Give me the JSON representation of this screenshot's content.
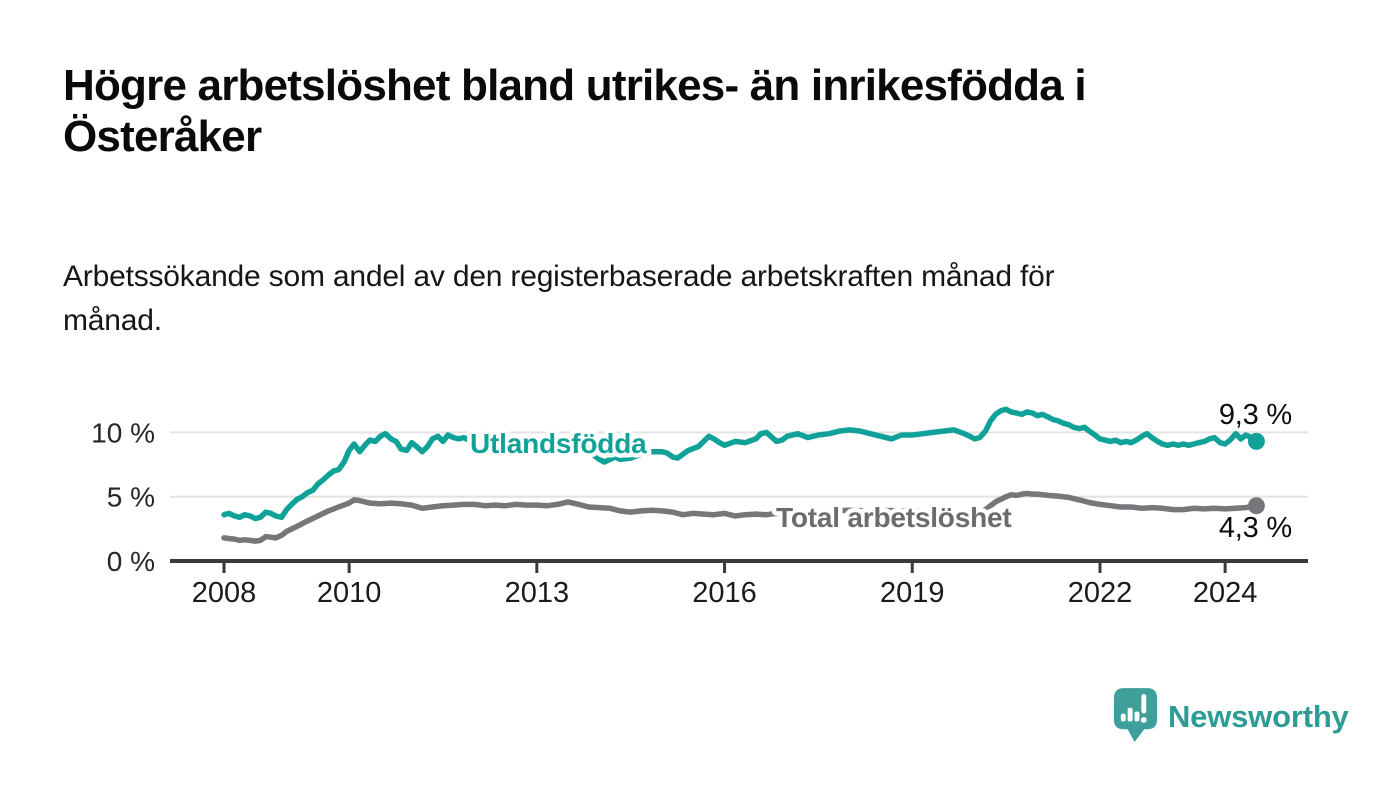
{
  "title": {
    "line1": "Högre arbetslöshet bland utrikes- än inrikesfödda i",
    "line2": "Österåker"
  },
  "subtitle": {
    "line1": "Arbetssökande som andel av den registerbaserade arbetskraften månad för",
    "line2": "månad."
  },
  "branding": {
    "name": "Newsworthy",
    "icon": "speech-bubble-bar-chart-icon",
    "text_color": "#2d9c95",
    "icon_color": "#3f9f9a"
  },
  "chart_data": {
    "type": "line",
    "x_axis": {
      "ticks": [
        2008,
        2010,
        2013,
        2016,
        2019,
        2022,
        2024
      ],
      "range": [
        2007.1,
        2025.3
      ]
    },
    "y_axis": {
      "ticks": [
        0,
        5,
        10
      ],
      "unit": "%",
      "range": [
        0,
        12.5
      ]
    },
    "grid": "horizontal",
    "legend_position": "inline-labels",
    "series": [
      {
        "id": "utlandsfodda",
        "name": "Utlandsfödda",
        "color": "#10a299",
        "label_color": "#10a299",
        "end_label": "9,3 %",
        "end_value": 9.3,
        "points": [
          [
            2008.0,
            3.6
          ],
          [
            2008.08,
            3.7
          ],
          [
            2008.17,
            3.5
          ],
          [
            2008.25,
            3.4
          ],
          [
            2008.33,
            3.6
          ],
          [
            2008.42,
            3.5
          ],
          [
            2008.5,
            3.3
          ],
          [
            2008.58,
            3.4
          ],
          [
            2008.67,
            3.8
          ],
          [
            2008.75,
            3.7
          ],
          [
            2008.83,
            3.5
          ],
          [
            2008.92,
            3.4
          ],
          [
            2009.0,
            4.0
          ],
          [
            2009.08,
            4.4
          ],
          [
            2009.17,
            4.8
          ],
          [
            2009.25,
            5.0
          ],
          [
            2009.33,
            5.3
          ],
          [
            2009.42,
            5.5
          ],
          [
            2009.5,
            6.0
          ],
          [
            2009.58,
            6.3
          ],
          [
            2009.67,
            6.7
          ],
          [
            2009.75,
            7.0
          ],
          [
            2009.83,
            7.1
          ],
          [
            2009.92,
            7.7
          ],
          [
            2010.0,
            8.6
          ],
          [
            2010.08,
            9.1
          ],
          [
            2010.17,
            8.5
          ],
          [
            2010.25,
            9.0
          ],
          [
            2010.33,
            9.4
          ],
          [
            2010.42,
            9.3
          ],
          [
            2010.5,
            9.7
          ],
          [
            2010.58,
            9.9
          ],
          [
            2010.67,
            9.5
          ],
          [
            2010.75,
            9.3
          ],
          [
            2010.83,
            8.7
          ],
          [
            2010.92,
            8.6
          ],
          [
            2011.0,
            9.2
          ],
          [
            2011.08,
            8.9
          ],
          [
            2011.17,
            8.5
          ],
          [
            2011.25,
            8.9
          ],
          [
            2011.33,
            9.5
          ],
          [
            2011.42,
            9.7
          ],
          [
            2011.5,
            9.3
          ],
          [
            2011.58,
            9.8
          ],
          [
            2011.67,
            9.6
          ],
          [
            2011.75,
            9.5
          ],
          [
            2011.83,
            9.6
          ],
          [
            2011.92,
            9.4
          ],
          [
            2012.0,
            9.5
          ],
          [
            2012.17,
            9.6
          ],
          [
            2012.33,
            9.5
          ],
          [
            2012.5,
            9.4
          ],
          [
            2012.67,
            9.6
          ],
          [
            2012.83,
            9.5
          ],
          [
            2013.0,
            9.5
          ],
          [
            2013.17,
            9.4
          ],
          [
            2013.33,
            9.5
          ],
          [
            2013.5,
            9.3
          ],
          [
            2013.67,
            9.0
          ],
          [
            2013.83,
            8.5
          ],
          [
            2014.0,
            7.9
          ],
          [
            2014.08,
            7.7
          ],
          [
            2014.17,
            7.9
          ],
          [
            2014.25,
            8.1
          ],
          [
            2014.33,
            7.9
          ],
          [
            2014.5,
            8.0
          ],
          [
            2014.67,
            8.3
          ],
          [
            2014.83,
            8.5
          ],
          [
            2015.0,
            8.5
          ],
          [
            2015.08,
            8.4
          ],
          [
            2015.17,
            8.1
          ],
          [
            2015.25,
            8.0
          ],
          [
            2015.42,
            8.6
          ],
          [
            2015.58,
            8.9
          ],
          [
            2015.75,
            9.7
          ],
          [
            2015.83,
            9.5
          ],
          [
            2015.92,
            9.2
          ],
          [
            2016.0,
            9.0
          ],
          [
            2016.17,
            9.3
          ],
          [
            2016.33,
            9.2
          ],
          [
            2016.5,
            9.5
          ],
          [
            2016.58,
            9.9
          ],
          [
            2016.67,
            10.0
          ],
          [
            2016.83,
            9.3
          ],
          [
            2016.92,
            9.4
          ],
          [
            2017.0,
            9.7
          ],
          [
            2017.17,
            9.9
          ],
          [
            2017.33,
            9.6
          ],
          [
            2017.5,
            9.8
          ],
          [
            2017.67,
            9.9
          ],
          [
            2017.83,
            10.1
          ],
          [
            2018.0,
            10.2
          ],
          [
            2018.17,
            10.1
          ],
          [
            2018.33,
            9.9
          ],
          [
            2018.5,
            9.7
          ],
          [
            2018.67,
            9.5
          ],
          [
            2018.83,
            9.8
          ],
          [
            2019.0,
            9.8
          ],
          [
            2019.17,
            9.9
          ],
          [
            2019.33,
            10.0
          ],
          [
            2019.5,
            10.1
          ],
          [
            2019.67,
            10.2
          ],
          [
            2019.83,
            9.9
          ],
          [
            2019.92,
            9.7
          ],
          [
            2020.0,
            9.5
          ],
          [
            2020.08,
            9.6
          ],
          [
            2020.17,
            10.1
          ],
          [
            2020.25,
            10.9
          ],
          [
            2020.33,
            11.4
          ],
          [
            2020.42,
            11.7
          ],
          [
            2020.5,
            11.8
          ],
          [
            2020.58,
            11.6
          ],
          [
            2020.67,
            11.5
          ],
          [
            2020.75,
            11.4
          ],
          [
            2020.83,
            11.6
          ],
          [
            2020.92,
            11.5
          ],
          [
            2021.0,
            11.3
          ],
          [
            2021.08,
            11.4
          ],
          [
            2021.17,
            11.2
          ],
          [
            2021.25,
            11.0
          ],
          [
            2021.33,
            10.9
          ],
          [
            2021.42,
            10.7
          ],
          [
            2021.5,
            10.6
          ],
          [
            2021.58,
            10.4
          ],
          [
            2021.67,
            10.3
          ],
          [
            2021.75,
            10.4
          ],
          [
            2021.83,
            10.1
          ],
          [
            2021.92,
            9.8
          ],
          [
            2022.0,
            9.5
          ],
          [
            2022.08,
            9.4
          ],
          [
            2022.17,
            9.3
          ],
          [
            2022.25,
            9.4
          ],
          [
            2022.33,
            9.2
          ],
          [
            2022.42,
            9.3
          ],
          [
            2022.5,
            9.2
          ],
          [
            2022.58,
            9.4
          ],
          [
            2022.67,
            9.7
          ],
          [
            2022.75,
            9.9
          ],
          [
            2022.83,
            9.6
          ],
          [
            2022.92,
            9.3
          ],
          [
            2023.0,
            9.1
          ],
          [
            2023.08,
            9.0
          ],
          [
            2023.17,
            9.1
          ],
          [
            2023.25,
            9.0
          ],
          [
            2023.33,
            9.1
          ],
          [
            2023.42,
            9.0
          ],
          [
            2023.5,
            9.1
          ],
          [
            2023.58,
            9.2
          ],
          [
            2023.67,
            9.3
          ],
          [
            2023.75,
            9.5
          ],
          [
            2023.83,
            9.6
          ],
          [
            2023.92,
            9.2
          ],
          [
            2024.0,
            9.1
          ],
          [
            2024.08,
            9.4
          ],
          [
            2024.17,
            9.9
          ],
          [
            2024.25,
            9.5
          ],
          [
            2024.33,
            9.8
          ],
          [
            2024.42,
            9.6
          ],
          [
            2024.5,
            9.3
          ]
        ]
      },
      {
        "id": "total",
        "name": "Total arbetslöshet",
        "color": "#76767b",
        "label_color": "#6b6b70",
        "end_label": "4,3 %",
        "end_value": 4.3,
        "points": [
          [
            2008.0,
            1.8
          ],
          [
            2008.08,
            1.75
          ],
          [
            2008.17,
            1.7
          ],
          [
            2008.25,
            1.6
          ],
          [
            2008.33,
            1.65
          ],
          [
            2008.42,
            1.6
          ],
          [
            2008.5,
            1.55
          ],
          [
            2008.58,
            1.6
          ],
          [
            2008.67,
            1.9
          ],
          [
            2008.75,
            1.85
          ],
          [
            2008.83,
            1.8
          ],
          [
            2008.92,
            2.0
          ],
          [
            2009.0,
            2.3
          ],
          [
            2009.17,
            2.7
          ],
          [
            2009.33,
            3.1
          ],
          [
            2009.5,
            3.5
          ],
          [
            2009.67,
            3.9
          ],
          [
            2009.83,
            4.2
          ],
          [
            2010.0,
            4.5
          ],
          [
            2010.08,
            4.75
          ],
          [
            2010.17,
            4.7
          ],
          [
            2010.25,
            4.6
          ],
          [
            2010.33,
            4.5
          ],
          [
            2010.5,
            4.45
          ],
          [
            2010.67,
            4.5
          ],
          [
            2010.83,
            4.45
          ],
          [
            2011.0,
            4.35
          ],
          [
            2011.17,
            4.1
          ],
          [
            2011.33,
            4.2
          ],
          [
            2011.5,
            4.3
          ],
          [
            2011.67,
            4.35
          ],
          [
            2011.83,
            4.4
          ],
          [
            2012.0,
            4.4
          ],
          [
            2012.17,
            4.3
          ],
          [
            2012.33,
            4.35
          ],
          [
            2012.5,
            4.3
          ],
          [
            2012.67,
            4.4
          ],
          [
            2012.83,
            4.35
          ],
          [
            2013.0,
            4.35
          ],
          [
            2013.17,
            4.3
          ],
          [
            2013.33,
            4.4
          ],
          [
            2013.5,
            4.6
          ],
          [
            2013.67,
            4.4
          ],
          [
            2013.83,
            4.2
          ],
          [
            2014.0,
            4.15
          ],
          [
            2014.17,
            4.1
          ],
          [
            2014.33,
            3.9
          ],
          [
            2014.5,
            3.8
          ],
          [
            2014.67,
            3.9
          ],
          [
            2014.83,
            3.95
          ],
          [
            2015.0,
            3.9
          ],
          [
            2015.17,
            3.8
          ],
          [
            2015.33,
            3.6
          ],
          [
            2015.5,
            3.7
          ],
          [
            2015.67,
            3.65
          ],
          [
            2015.83,
            3.6
          ],
          [
            2016.0,
            3.7
          ],
          [
            2016.17,
            3.5
          ],
          [
            2016.33,
            3.6
          ],
          [
            2016.5,
            3.65
          ],
          [
            2016.67,
            3.6
          ],
          [
            2016.83,
            3.7
          ],
          [
            2017.0,
            3.75
          ],
          [
            2017.25,
            3.8
          ],
          [
            2017.5,
            3.85
          ],
          [
            2017.75,
            3.9
          ],
          [
            2018.0,
            3.95
          ],
          [
            2018.25,
            3.9
          ],
          [
            2018.5,
            3.95
          ],
          [
            2018.75,
            3.9
          ],
          [
            2019.0,
            3.9
          ],
          [
            2019.25,
            3.85
          ],
          [
            2019.5,
            3.8
          ],
          [
            2019.75,
            3.7
          ],
          [
            2019.92,
            3.6
          ],
          [
            2020.0,
            3.7
          ],
          [
            2020.17,
            4.0
          ],
          [
            2020.33,
            4.6
          ],
          [
            2020.5,
            5.0
          ],
          [
            2020.58,
            5.15
          ],
          [
            2020.67,
            5.1
          ],
          [
            2020.75,
            5.2
          ],
          [
            2020.83,
            5.25
          ],
          [
            2020.92,
            5.2
          ],
          [
            2021.0,
            5.2
          ],
          [
            2021.17,
            5.1
          ],
          [
            2021.33,
            5.05
          ],
          [
            2021.5,
            4.95
          ],
          [
            2021.67,
            4.75
          ],
          [
            2021.83,
            4.55
          ],
          [
            2022.0,
            4.4
          ],
          [
            2022.17,
            4.3
          ],
          [
            2022.33,
            4.2
          ],
          [
            2022.5,
            4.2
          ],
          [
            2022.67,
            4.1
          ],
          [
            2022.83,
            4.15
          ],
          [
            2023.0,
            4.1
          ],
          [
            2023.17,
            4.0
          ],
          [
            2023.33,
            4.0
          ],
          [
            2023.5,
            4.1
          ],
          [
            2023.67,
            4.05
          ],
          [
            2023.83,
            4.1
          ],
          [
            2024.0,
            4.05
          ],
          [
            2024.17,
            4.1
          ],
          [
            2024.33,
            4.15
          ],
          [
            2024.5,
            4.3
          ]
        ]
      }
    ]
  }
}
